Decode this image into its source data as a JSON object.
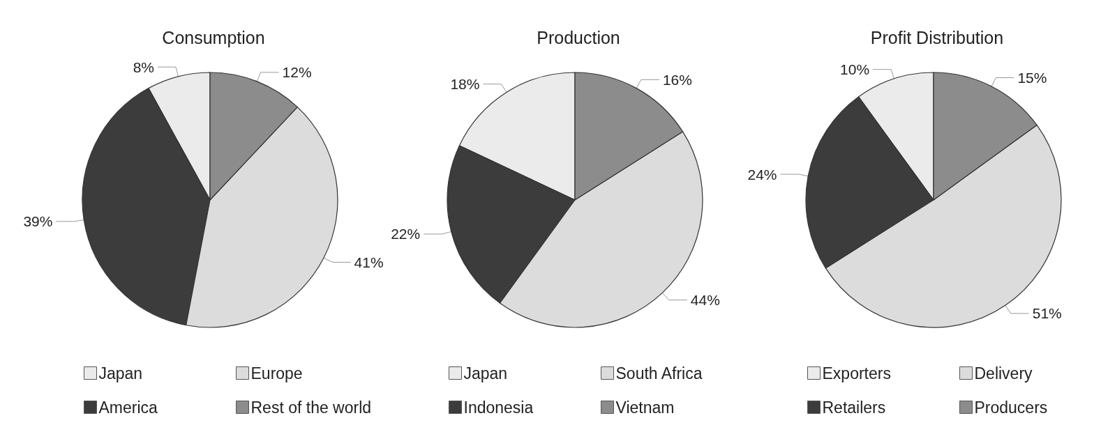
{
  "chart_data": [
    {
      "type": "pie",
      "title": "Consumption",
      "categories": [
        "Japan",
        "America",
        "Europe",
        "Rest of the world"
      ],
      "values": [
        8,
        39,
        41,
        12
      ],
      "colors": [
        "#ebebeb",
        "#3c3c3c",
        "#dcdcdc",
        "#8c8c8c"
      ],
      "value_labels": [
        "8%",
        "39%",
        "41%",
        "12%"
      ],
      "legend": "bottom"
    },
    {
      "type": "pie",
      "title": "Production",
      "categories": [
        "Japan",
        "Indonesia",
        "South Africa",
        "Vietnam"
      ],
      "values": [
        18,
        22,
        44,
        16
      ],
      "colors": [
        "#ebebeb",
        "#3c3c3c",
        "#dcdcdc",
        "#8c8c8c"
      ],
      "value_labels": [
        "18%",
        "22%",
        "44%",
        "16%"
      ],
      "legend": "bottom"
    },
    {
      "type": "pie",
      "title": "Profit Distribution",
      "categories": [
        "Exporters",
        "Retailers",
        "Delivery",
        "Producers"
      ],
      "values": [
        10,
        24,
        51,
        15
      ],
      "colors": [
        "#ebebeb",
        "#3c3c3c",
        "#dcdcdc",
        "#8c8c8c"
      ],
      "value_labels": [
        "10%",
        "24%",
        "51%",
        "15%"
      ],
      "legend": "bottom"
    }
  ]
}
